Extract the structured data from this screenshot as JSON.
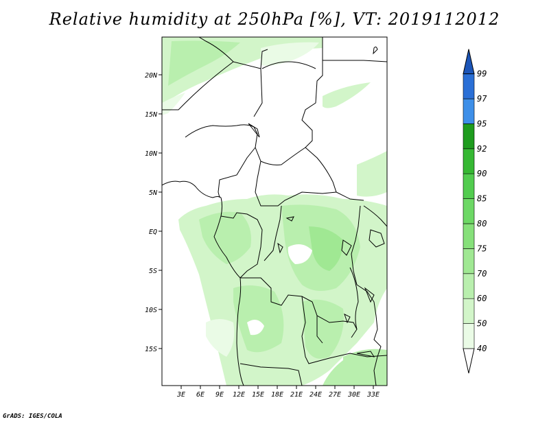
{
  "title": "Relative humidity at 250hPa [%], VT: 2019112012",
  "credit": "GrADS: IGES/COLA",
  "map": {
    "lon_range": [
      0,
      36
    ],
    "lat_range": [
      -20,
      25
    ],
    "lon_ticks": [
      "3E",
      "6E",
      "9E",
      "12E",
      "15E",
      "18E",
      "21E",
      "24E",
      "27E",
      "30E",
      "33E"
    ],
    "lat_ticks": [
      "20N",
      "15N",
      "10N",
      "5N",
      "EQ",
      "5S",
      "10S",
      "15S"
    ]
  },
  "colorbar": {
    "levels": [
      "40",
      "50",
      "60",
      "70",
      "75",
      "80",
      "85",
      "90",
      "92",
      "95",
      "97",
      "99"
    ],
    "colors": [
      "#eafbe6",
      "#d2f5c9",
      "#b9efae",
      "#a0e893",
      "#86e07a",
      "#6dd865",
      "#52cc4f",
      "#36b833",
      "#1e9c1e",
      "#3e8fe8",
      "#2a6fd6",
      "#1c55b8"
    ]
  }
}
